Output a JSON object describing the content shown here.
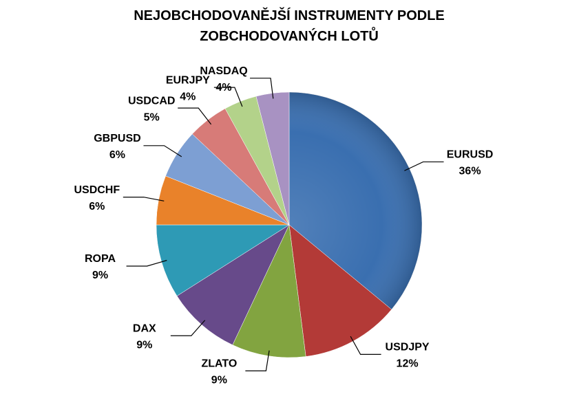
{
  "chart_data": {
    "type": "pie",
    "title": "NEJOBCHODOVANĚJŠÍ INSTRUMENTY PODLE ZOBCHODOVANÝCH LOTŮ",
    "categories": [
      "EURUSD",
      "USDJPY",
      "ZLATO",
      "DAX",
      "ROPA",
      "USDCHF",
      "GBPUSD",
      "USDCAD",
      "EURJPY",
      "NASDAQ"
    ],
    "values": [
      36,
      12,
      9,
      9,
      9,
      6,
      6,
      5,
      4,
      4
    ],
    "value_labels": [
      "36%",
      "12%",
      "9%",
      "9%",
      "9%",
      "6%",
      "6%",
      "5%",
      "4%",
      "4%"
    ],
    "colors": [
      "#3a6fb0",
      "#b33a37",
      "#82a440",
      "#674a8a",
      "#2e9ab5",
      "#e9822a",
      "#7d9fd3",
      "#d77b78",
      "#b3d28a",
      "#a892c2"
    ]
  }
}
